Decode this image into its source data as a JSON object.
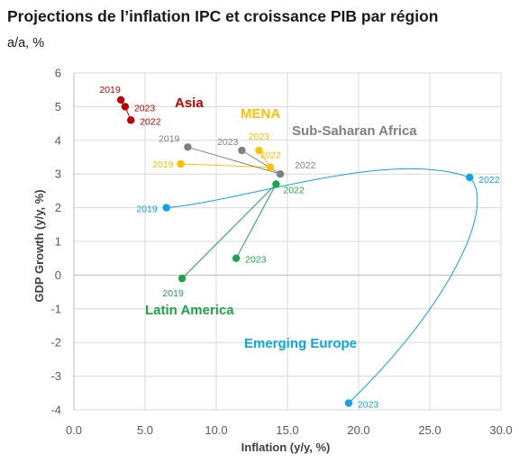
{
  "title": "Projections de l’inflation IPC et croissance PIB par région",
  "subtitle": "a/a, %",
  "chart_data": {
    "type": "scatter",
    "title": "Projections de l’inflation IPC et croissance PIB par région",
    "subtitle": "a/a, %",
    "xlabel": "Inflation (y/y, %)",
    "ylabel": "GDP Growth (y/y, %)",
    "xlim": [
      0,
      30
    ],
    "ylim": [
      -4,
      6
    ],
    "xticks": [
      "0.0",
      "5.0",
      "10.0",
      "15.0",
      "20.0",
      "25.0",
      "30.0"
    ],
    "yticks": [
      "6",
      "5",
      "4",
      "3",
      "2",
      "1",
      "0",
      "-1",
      "-2",
      "-3",
      "-4"
    ],
    "grid": true,
    "series": [
      {
        "name": "Asia",
        "color": "#c00000",
        "points": [
          {
            "label": "2019",
            "x": 3.3,
            "y": 5.2
          },
          {
            "label": "2023",
            "x": 3.6,
            "y": 5.0
          },
          {
            "label": "2022",
            "x": 4.0,
            "y": 4.6
          }
        ]
      },
      {
        "name": "MENA",
        "color": "#ffc000",
        "points": [
          {
            "label": "2019",
            "x": 7.5,
            "y": 3.3
          },
          {
            "label": "2022",
            "x": 13.8,
            "y": 3.2
          },
          {
            "label": "2023",
            "x": 13.0,
            "y": 3.7
          }
        ]
      },
      {
        "name": "Sub-Saharan Africa",
        "color": "#808080",
        "points": [
          {
            "label": "2019",
            "x": 8.0,
            "y": 3.8
          },
          {
            "label": "2023",
            "x": 11.8,
            "y": 3.7
          },
          {
            "label": "2022",
            "x": 14.5,
            "y": 3.0
          }
        ]
      },
      {
        "name": "Latin America",
        "color": "#1fa34a",
        "points": [
          {
            "label": "2019",
            "x": 7.6,
            "y": -0.1
          },
          {
            "label": "2022",
            "x": 14.2,
            "y": 2.7
          },
          {
            "label": "2023",
            "x": 11.4,
            "y": 0.5
          }
        ]
      },
      {
        "name": "Emerging Europe",
        "color": "#0ba5e8",
        "points": [
          {
            "label": "2019",
            "x": 6.5,
            "y": 2.0
          },
          {
            "label": "2022",
            "x": 27.8,
            "y": 2.9
          },
          {
            "label": "2023",
            "x": 19.3,
            "y": -3.8
          }
        ]
      }
    ]
  }
}
